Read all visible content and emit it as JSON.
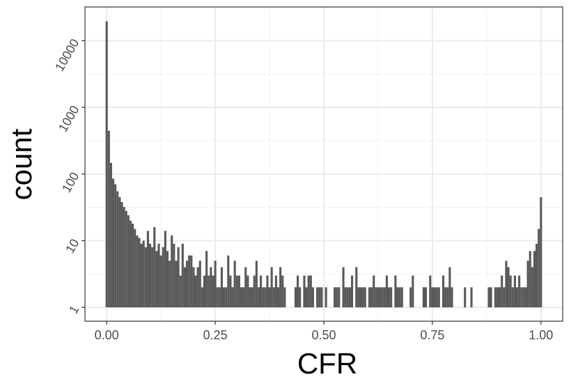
{
  "chart_data": {
    "type": "histogram",
    "x_label": "CFR",
    "y_label": "count",
    "color": "#595959",
    "log_y": true,
    "grid": true,
    "bins": [
      -0.0025,
      0.0025,
      0.0075,
      0.0125,
      0.0175,
      0.0225,
      0.0275,
      0.0325,
      0.0375,
      0.0425,
      0.0475,
      0.0525,
      0.0575,
      0.0625,
      0.0675,
      0.0725,
      0.0775,
      0.0825,
      0.0875,
      0.0925,
      0.0975,
      0.1025,
      0.1075,
      0.1125,
      0.1175,
      0.1225,
      0.1275,
      0.1325,
      0.1375,
      0.1425,
      0.1475,
      0.1525,
      0.1575,
      0.1625,
      0.1675,
      0.1725,
      0.1775,
      0.1825,
      0.1875,
      0.1925,
      0.1975,
      0.2025,
      0.2075,
      0.2125,
      0.2175,
      0.2225,
      0.2275,
      0.2325,
      0.2375,
      0.2425,
      0.2475,
      0.2525,
      0.2575,
      0.2625,
      0.2675,
      0.2725,
      0.2775,
      0.2825,
      0.2875,
      0.2925,
      0.2975,
      0.3025,
      0.3075,
      0.3125,
      0.3175,
      0.3225,
      0.3275,
      0.3325,
      0.3375,
      0.3425,
      0.3475,
      0.3525,
      0.3575,
      0.3625,
      0.3675,
      0.3725,
      0.3775,
      0.3825,
      0.3875,
      0.3925,
      0.3975,
      0.4025,
      0.4075,
      0.4125,
      0.4175,
      0.4225,
      0.4275,
      0.4325,
      0.4375,
      0.4425,
      0.4475,
      0.4525,
      0.4575,
      0.4625,
      0.4675,
      0.4725,
      0.4775,
      0.4825,
      0.4875,
      0.4925,
      0.4975,
      0.5025,
      0.5075,
      0.5125,
      0.5175,
      0.5225,
      0.5275,
      0.5325,
      0.5375,
      0.5425,
      0.5475,
      0.5525,
      0.5575,
      0.5625,
      0.5675,
      0.5725,
      0.5775,
      0.5825,
      0.5875,
      0.5925,
      0.5975,
      0.6025,
      0.6075,
      0.6125,
      0.6175,
      0.6225,
      0.6275,
      0.6325,
      0.6375,
      0.6425,
      0.6475,
      0.6525,
      0.6575,
      0.6625,
      0.6675,
      0.6725,
      0.6775,
      0.6825,
      0.6875,
      0.6925,
      0.6975,
      0.7025,
      0.7075,
      0.7125,
      0.7175,
      0.7225,
      0.7275,
      0.7325,
      0.7375,
      0.7425,
      0.7475,
      0.7525,
      0.7575,
      0.7625,
      0.7675,
      0.7725,
      0.7775,
      0.7825,
      0.7875,
      0.7925,
      0.7975,
      0.8025,
      0.8075,
      0.8125,
      0.8175,
      0.8225,
      0.8275,
      0.8325,
      0.8375,
      0.8425,
      0.8475,
      0.8525,
      0.8575,
      0.8625,
      0.8675,
      0.8725,
      0.8775,
      0.8825,
      0.8875,
      0.8925,
      0.8975,
      0.9025,
      0.9075,
      0.9125,
      0.9175,
      0.9225,
      0.9275,
      0.9325,
      0.9375,
      0.9425,
      0.9475,
      0.9525,
      0.9575,
      0.9625,
      0.9675,
      0.9725,
      0.9775,
      0.9825,
      0.9875,
      0.9925,
      0.9975,
      1.0025
    ],
    "values": [
      19500,
      445,
      147,
      85,
      70,
      55,
      45,
      38,
      32,
      28,
      24,
      20,
      18,
      15,
      12,
      11,
      9,
      10,
      8,
      14,
      9,
      8,
      16,
      7,
      9,
      6,
      8,
      14,
      7,
      5,
      12,
      9,
      5,
      8,
      3,
      9,
      4,
      5,
      6,
      6,
      4,
      3,
      4,
      5,
      2,
      3,
      7,
      3,
      4,
      3,
      5,
      2,
      2,
      4,
      2,
      2,
      6,
      3,
      2,
      5,
      3,
      3,
      2,
      2,
      4,
      3,
      2,
      2,
      3,
      5,
      2,
      3,
      2,
      2,
      3,
      2,
      4,
      2,
      3,
      2,
      4,
      3,
      2,
      1,
      0,
      0,
      1,
      2,
      3,
      2,
      0,
      3,
      2,
      3,
      3,
      2,
      0,
      2,
      2,
      2,
      0,
      2,
      0,
      0,
      0,
      2,
      2,
      2,
      0,
      4,
      2,
      2,
      2,
      3,
      0,
      4,
      2,
      2,
      2,
      2,
      0,
      2,
      2,
      3,
      2,
      2,
      2,
      2,
      2,
      3,
      2,
      2,
      0,
      3,
      2,
      2,
      2,
      0,
      0,
      0,
      2,
      3,
      0,
      0,
      0,
      0,
      2,
      2,
      0,
      3,
      2,
      2,
      2,
      2,
      0,
      3,
      2,
      2,
      4,
      2,
      0,
      0,
      0,
      0,
      0,
      2,
      0,
      0,
      2,
      0,
      0,
      0,
      0,
      0,
      0,
      0,
      2,
      2,
      0,
      2,
      2,
      2,
      3,
      2,
      5,
      4,
      3,
      2,
      3,
      2,
      3,
      2,
      2,
      2,
      5,
      7,
      4,
      7,
      9,
      15,
      45
    ],
    "xlim": [
      -0.05,
      1.05
    ],
    "xticks": [
      {
        "value": 0,
        "label": "0.00"
      },
      {
        "value": 0.25,
        "label": "0.25"
      },
      {
        "value": 0.5,
        "label": "0.50"
      },
      {
        "value": 0.75,
        "label": "0.75"
      },
      {
        "value": 1,
        "label": "1.00"
      }
    ],
    "ylim": [
      0.62,
      32000
    ],
    "yticks": [
      1,
      10,
      100,
      1000,
      10000
    ]
  }
}
